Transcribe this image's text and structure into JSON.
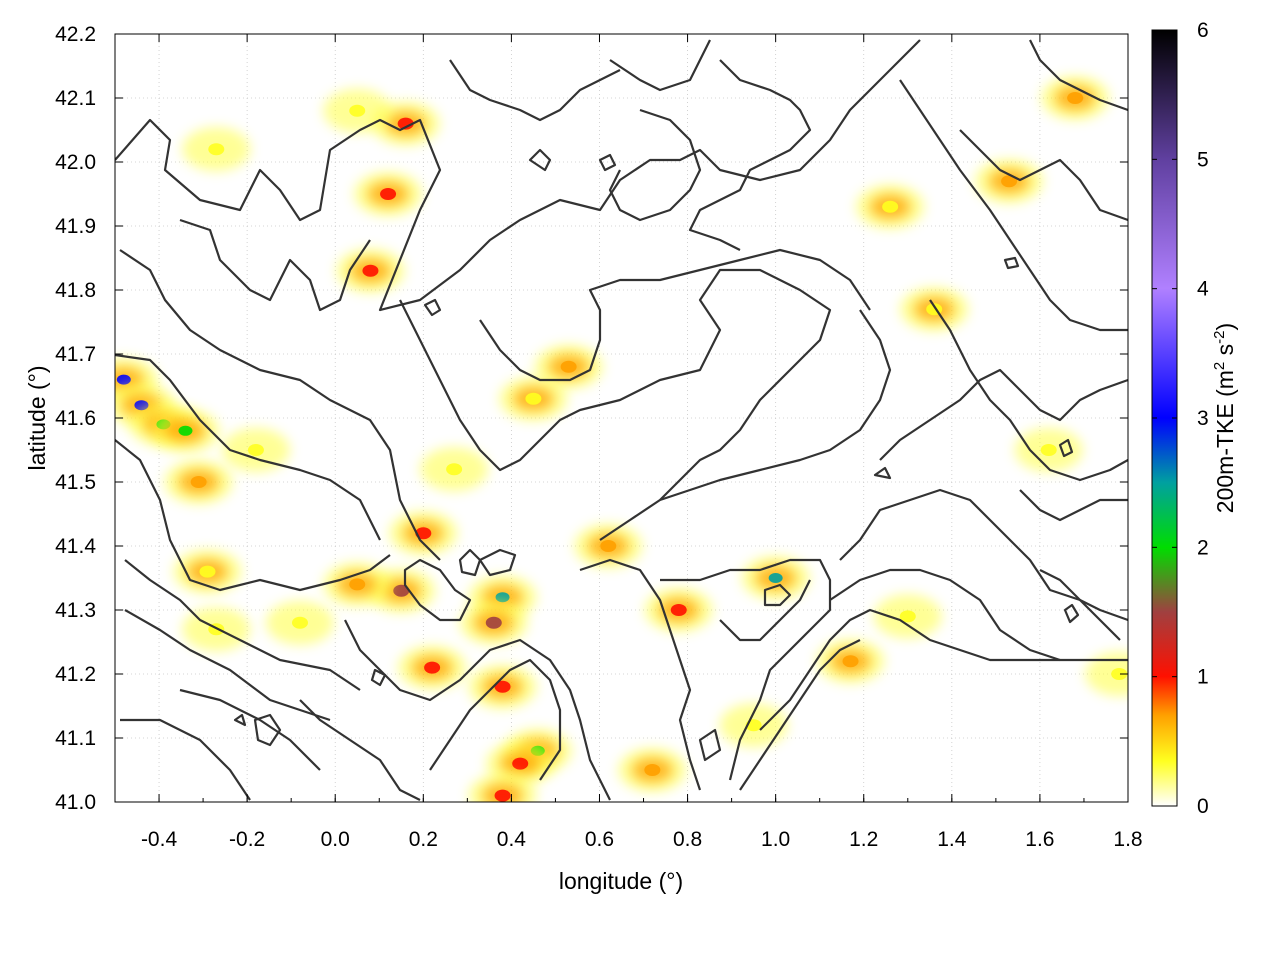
{
  "chart_data": {
    "type": "heatmap",
    "title": "",
    "xlabel": "longitude (°)",
    "ylabel": "latitude (°)",
    "colorbar_label": "200m-TKE (m",
    "colorbar_label_sup1": "2",
    "colorbar_label_mid": " s",
    "colorbar_label_sup2": "-2",
    "colorbar_label_end": ")",
    "xlim": [
      -0.5,
      1.8
    ],
    "ylim": [
      41.0,
      42.2
    ],
    "x_ticks": [
      -0.4,
      -0.2,
      0.0,
      0.2,
      0.4,
      0.6,
      0.8,
      1.0,
      1.2,
      1.4,
      1.6,
      1.8
    ],
    "x_tick_labels": [
      "-0.4",
      "-0.2",
      "0.0",
      "0.2",
      "0.4",
      "0.6",
      "0.8",
      "1.0",
      "1.2",
      "1.4",
      "1.6",
      "1.8"
    ],
    "y_ticks": [
      41.0,
      41.1,
      41.2,
      41.3,
      41.4,
      41.5,
      41.6,
      41.7,
      41.8,
      41.9,
      42.0,
      42.1,
      42.2
    ],
    "y_tick_labels": [
      "41.0",
      "41.1",
      "41.2",
      "41.3",
      "41.4",
      "41.5",
      "41.6",
      "41.7",
      "41.8",
      "41.9",
      "42.0",
      "42.1",
      "42.2"
    ],
    "colorbar_range": [
      0,
      6
    ],
    "colorbar_ticks": [
      "0",
      "1",
      "2",
      "3",
      "4",
      "5",
      "6"
    ],
    "colorscale": [
      {
        "v": 0.0,
        "color": "#ffffff"
      },
      {
        "v": 0.35,
        "color": "#ffff20"
      },
      {
        "v": 0.7,
        "color": "#ffa000"
      },
      {
        "v": 1.0,
        "color": "#ff1000"
      },
      {
        "v": 1.5,
        "color": "#a04040"
      },
      {
        "v": 2.0,
        "color": "#00dd00"
      },
      {
        "v": 2.5,
        "color": "#00a0a0"
      },
      {
        "v": 3.0,
        "color": "#0000ff"
      },
      {
        "v": 4.0,
        "color": "#b080ff"
      },
      {
        "v": 5.0,
        "color": "#6040a0"
      },
      {
        "v": 6.0,
        "color": "#000000"
      }
    ],
    "grid": true,
    "tke_hotspots": [
      {
        "lon": -0.48,
        "lat": 41.66,
        "value": 3.0
      },
      {
        "lon": -0.44,
        "lat": 41.62,
        "value": 3.3
      },
      {
        "lon": -0.39,
        "lat": 41.59,
        "value": 2.2
      },
      {
        "lon": -0.34,
        "lat": 41.58,
        "value": 2.0
      },
      {
        "lon": -0.31,
        "lat": 41.5,
        "value": 0.7
      },
      {
        "lon": 0.08,
        "lat": 41.83,
        "value": 1.0
      },
      {
        "lon": 0.12,
        "lat": 41.95,
        "value": 1.1
      },
      {
        "lon": 0.16,
        "lat": 42.06,
        "value": 1.0
      },
      {
        "lon": 0.53,
        "lat": 41.68,
        "value": 0.9
      },
      {
        "lon": 0.45,
        "lat": 41.63,
        "value": 0.6
      },
      {
        "lon": 0.2,
        "lat": 41.42,
        "value": 1.0
      },
      {
        "lon": 0.15,
        "lat": 41.33,
        "value": 1.8
      },
      {
        "lon": 0.38,
        "lat": 41.32,
        "value": 2.8
      },
      {
        "lon": 0.36,
        "lat": 41.28,
        "value": 1.5
      },
      {
        "lon": 0.22,
        "lat": 41.21,
        "value": 1.0
      },
      {
        "lon": 0.38,
        "lat": 41.18,
        "value": 1.0
      },
      {
        "lon": 0.46,
        "lat": 41.08,
        "value": 2.2
      },
      {
        "lon": 0.42,
        "lat": 41.06,
        "value": 1.1
      },
      {
        "lon": 0.38,
        "lat": 41.01,
        "value": 1.0
      },
      {
        "lon": 0.72,
        "lat": 41.05,
        "value": 0.9
      },
      {
        "lon": 0.78,
        "lat": 41.3,
        "value": 1.0
      },
      {
        "lon": 1.0,
        "lat": 41.35,
        "value": 2.5
      },
      {
        "lon": 1.17,
        "lat": 41.22,
        "value": 0.7
      },
      {
        "lon": 1.3,
        "lat": 41.29,
        "value": 0.4
      },
      {
        "lon": 1.53,
        "lat": 41.97,
        "value": 0.9
      },
      {
        "lon": 1.68,
        "lat": 42.1,
        "value": 0.7
      },
      {
        "lon": 1.26,
        "lat": 41.93,
        "value": 0.6
      },
      {
        "lon": 1.36,
        "lat": 41.77,
        "value": 0.6
      },
      {
        "lon": 1.62,
        "lat": 41.55,
        "value": 0.4
      },
      {
        "lon": 1.78,
        "lat": 41.2,
        "value": 0.4
      },
      {
        "lon": -0.29,
        "lat": 41.36,
        "value": 0.6
      },
      {
        "lon": 0.05,
        "lat": 41.34,
        "value": 0.7
      },
      {
        "lon": -0.08,
        "lat": 41.28,
        "value": 0.4
      },
      {
        "lon": -0.27,
        "lat": 41.27,
        "value": 0.5
      },
      {
        "lon": 0.62,
        "lat": 41.4,
        "value": 0.7
      },
      {
        "lon": 0.95,
        "lat": 41.12,
        "value": 0.4
      },
      {
        "lon": 0.27,
        "lat": 41.52,
        "value": 0.4
      },
      {
        "lon": -0.18,
        "lat": 41.55,
        "value": 0.35
      },
      {
        "lon": 0.05,
        "lat": 42.08,
        "value": 0.4
      },
      {
        "lon": -0.27,
        "lat": 42.02,
        "value": 0.5
      }
    ]
  }
}
